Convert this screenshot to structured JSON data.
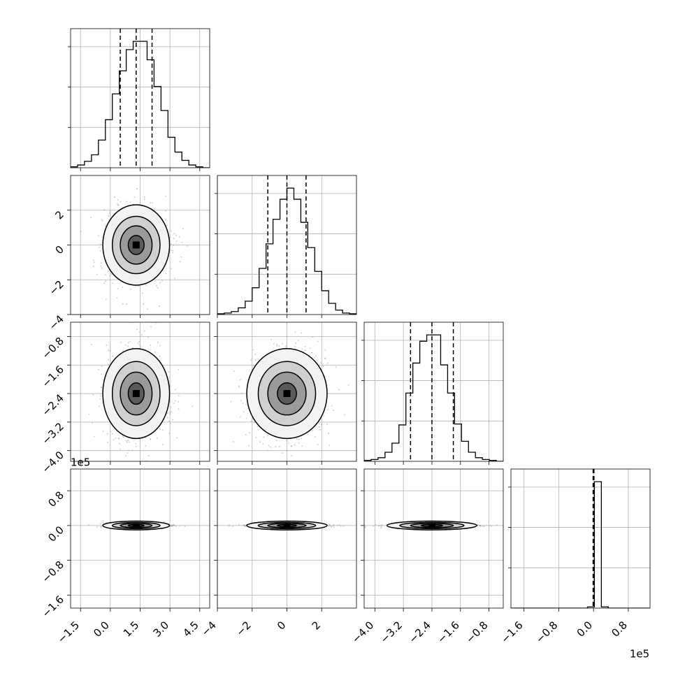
{
  "chart_data": {
    "type": "corner",
    "grid": true,
    "dimensions": [
      {
        "ticks": [
          -1.5,
          0.0,
          1.5,
          3.0,
          4.5
        ],
        "tick_labels": [
          "−1.5",
          "0.0",
          "1.5",
          "3.0",
          "4.5"
        ],
        "range": [
          -2.0,
          5.0
        ],
        "quantiles": [
          0.5,
          1.3,
          2.1
        ],
        "hist_edges": [
          -2.0,
          -1.65,
          -1.3,
          -0.95,
          -0.6,
          -0.25,
          0.1,
          0.45,
          0.8,
          1.15,
          1.5,
          1.85,
          2.2,
          2.55,
          2.9,
          3.25,
          3.6,
          3.95,
          4.3,
          4.65,
          5.0
        ],
        "hist_counts": [
          1,
          3,
          7,
          14,
          30,
          52,
          80,
          105,
          128,
          137,
          137,
          117,
          88,
          62,
          33,
          17,
          8,
          3,
          1,
          0
        ],
        "offset_label": ""
      },
      {
        "ticks": [
          -4,
          -2,
          0,
          2
        ],
        "tick_labels": [
          "−4",
          "−2",
          "0",
          "2"
        ],
        "range": [
          -4.0,
          4.0
        ],
        "quantiles": [
          -1.1,
          0.0,
          1.1
        ],
        "hist_edges": [
          -4.0,
          -3.6,
          -3.2,
          -2.8,
          -2.4,
          -2.0,
          -1.6,
          -1.2,
          -0.8,
          -0.4,
          0.0,
          0.4,
          0.8,
          1.2,
          1.6,
          2.0,
          2.4,
          2.8,
          3.2,
          3.6,
          4.0
        ],
        "hist_counts": [
          1,
          2,
          4,
          9,
          18,
          36,
          62,
          95,
          128,
          155,
          170,
          155,
          124,
          90,
          58,
          32,
          15,
          6,
          2,
          1
        ],
        "offset_label": ""
      },
      {
        "ticks": [
          -4.0,
          -3.2,
          -2.4,
          -1.6,
          -0.8
        ],
        "tick_labels": [
          "−4.0",
          "−3.2",
          "−2.4",
          "−1.6",
          "−0.8"
        ],
        "range": [
          -4.3,
          -0.4
        ],
        "quantiles": [
          -3.0,
          -2.4,
          -1.8
        ],
        "hist_edges": [
          -4.3,
          -4.105,
          -3.91,
          -3.715,
          -3.52,
          -3.325,
          -3.13,
          -2.935,
          -2.74,
          -2.545,
          -2.35,
          -2.155,
          -1.96,
          -1.765,
          -1.57,
          -1.375,
          -1.18,
          -0.985,
          -0.79,
          -0.595,
          -0.4
        ],
        "hist_counts": [
          1,
          2,
          4,
          10,
          20,
          40,
          75,
          108,
          132,
          139,
          139,
          106,
          75,
          41,
          22,
          10,
          4,
          2,
          1,
          0
        ],
        "offset_label": ""
      },
      {
        "ticks": [
          -1.6,
          -0.8,
          0.0,
          0.8
        ],
        "tick_labels": [
          "−1.6",
          "−0.8",
          "0.0",
          "0.8"
        ],
        "range": [
          -1.9,
          1.3
        ],
        "quantiles": [
          -0.01,
          0.0,
          0.01
        ],
        "hist_edges": [
          -1.9,
          -1.74,
          -1.58,
          -1.42,
          -1.26,
          -1.1,
          -0.94,
          -0.78,
          -0.62,
          -0.46,
          -0.3,
          -0.14,
          0.02,
          0.18,
          0.34,
          0.5,
          0.66,
          0.82,
          0.98,
          1.14,
          1.3
        ],
        "hist_counts": [
          0,
          0,
          0,
          0,
          0,
          0,
          0,
          0,
          0,
          0,
          0,
          1,
          105,
          1,
          0,
          0,
          0,
          0,
          0,
          0
        ],
        "offset_label": "1e5"
      }
    ],
    "panel_offset_labels": [
      {
        "row": 3,
        "text": "1e5"
      }
    ]
  }
}
